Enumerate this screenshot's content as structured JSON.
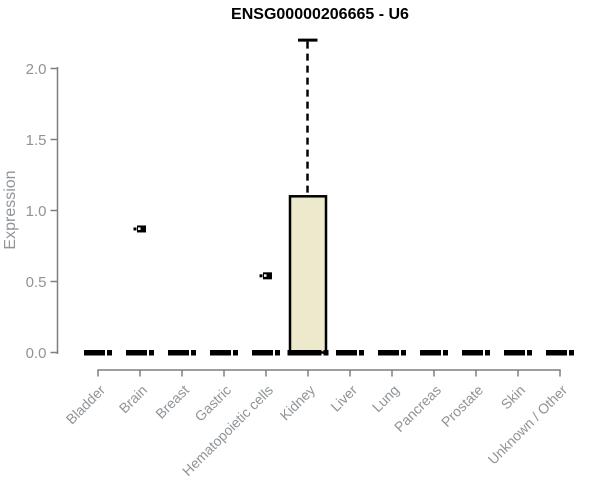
{
  "chart_data": {
    "type": "box",
    "title": "ENSG00000206665 - U6",
    "ylabel": "Expression",
    "xlabel": "",
    "ylim": [
      0,
      2.2
    ],
    "ytick_values": [
      0,
      0.5,
      1.0,
      1.5,
      2.0
    ],
    "yticks": [
      "0.0",
      "0.5",
      "1.0",
      "1.5",
      "2.0"
    ],
    "grid": false,
    "legend": false,
    "colors": {
      "box_fill": "#EDE9CC",
      "box_stroke": "#000000",
      "axis_line": "#7f7f7f",
      "label_text": "#8f9498",
      "title_text": "#000000",
      "background": "#ffffff"
    },
    "categories": [
      "Bladder",
      "Brain",
      "Breast",
      "Gastric",
      "Hematopoietic cells",
      "Kidney",
      "Liver",
      "Lung",
      "Pancreas",
      "Prostate",
      "Skin",
      "Unknown / Other"
    ],
    "boxes": [
      {
        "category": "Bladder",
        "low": 0,
        "q1": 0,
        "median": 0,
        "q3": 0,
        "high": 0,
        "outliers": []
      },
      {
        "category": "Brain",
        "low": 0,
        "q1": 0,
        "median": 0,
        "q3": 0,
        "high": 0,
        "outliers": [
          0.87
        ]
      },
      {
        "category": "Breast",
        "low": 0,
        "q1": 0,
        "median": 0,
        "q3": 0,
        "high": 0,
        "outliers": []
      },
      {
        "category": "Gastric",
        "low": 0,
        "q1": 0,
        "median": 0,
        "q3": 0,
        "high": 0,
        "outliers": []
      },
      {
        "category": "Hematopoietic cells",
        "low": 0,
        "q1": 0,
        "median": 0,
        "q3": 0,
        "high": 0,
        "outliers": [
          0.54
        ]
      },
      {
        "category": "Kidney",
        "low": 0,
        "q1": 0,
        "median": 0,
        "q3": 1.1,
        "high": 2.2,
        "outliers": []
      },
      {
        "category": "Liver",
        "low": 0,
        "q1": 0,
        "median": 0,
        "q3": 0,
        "high": 0,
        "outliers": []
      },
      {
        "category": "Lung",
        "low": 0,
        "q1": 0,
        "median": 0,
        "q3": 0,
        "high": 0,
        "outliers": []
      },
      {
        "category": "Pancreas",
        "low": 0,
        "q1": 0,
        "median": 0,
        "q3": 0,
        "high": 0,
        "outliers": []
      },
      {
        "category": "Prostate",
        "low": 0,
        "q1": 0,
        "median": 0,
        "q3": 0,
        "high": 0,
        "outliers": []
      },
      {
        "category": "Skin",
        "low": 0,
        "q1": 0,
        "median": 0,
        "q3": 0,
        "high": 0,
        "outliers": []
      },
      {
        "category": "Unknown / Other",
        "low": 0,
        "q1": 0,
        "median": 0,
        "q3": 0,
        "high": 0,
        "outliers": []
      }
    ]
  }
}
